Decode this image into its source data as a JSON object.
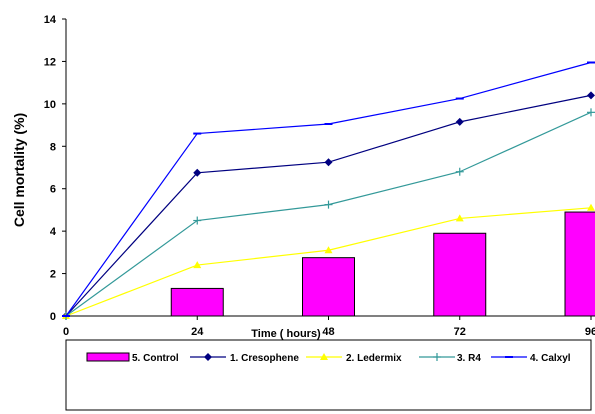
{
  "chart_data": {
    "type": "line",
    "xlabel": "Time ( hours)",
    "ylabel": "Cell mortality (%)",
    "x": [
      0,
      24,
      48,
      72,
      96
    ],
    "xlim": [
      0,
      96
    ],
    "ylim": [
      0,
      14
    ],
    "y_ticks": [
      0,
      2,
      4,
      6,
      8,
      10,
      12,
      14
    ],
    "grid": false,
    "legend_position": "bottom",
    "series": [
      {
        "name": "5. Control",
        "kind": "bar",
        "color": "#ff00ff",
        "values": [
          0,
          1.3,
          2.75,
          3.9,
          4.9
        ]
      },
      {
        "name": "1. Cresophene",
        "kind": "line",
        "marker": "diamond",
        "color": "#000080",
        "values": [
          0,
          6.75,
          7.25,
          9.15,
          10.4
        ]
      },
      {
        "name": "2. Ledermix",
        "kind": "line",
        "marker": "triangle",
        "color": "#ffff00",
        "values": [
          0,
          2.4,
          3.1,
          4.6,
          5.1
        ]
      },
      {
        "name": "3. R4",
        "kind": "line",
        "marker": "plus",
        "color": "#339999",
        "values": [
          0,
          4.5,
          5.25,
          6.8,
          9.6
        ]
      },
      {
        "name": "4. Calxyl",
        "kind": "line",
        "marker": "dash",
        "color": "#0000ff",
        "values": [
          0,
          8.6,
          9.05,
          10.25,
          11.95
        ]
      }
    ]
  }
}
